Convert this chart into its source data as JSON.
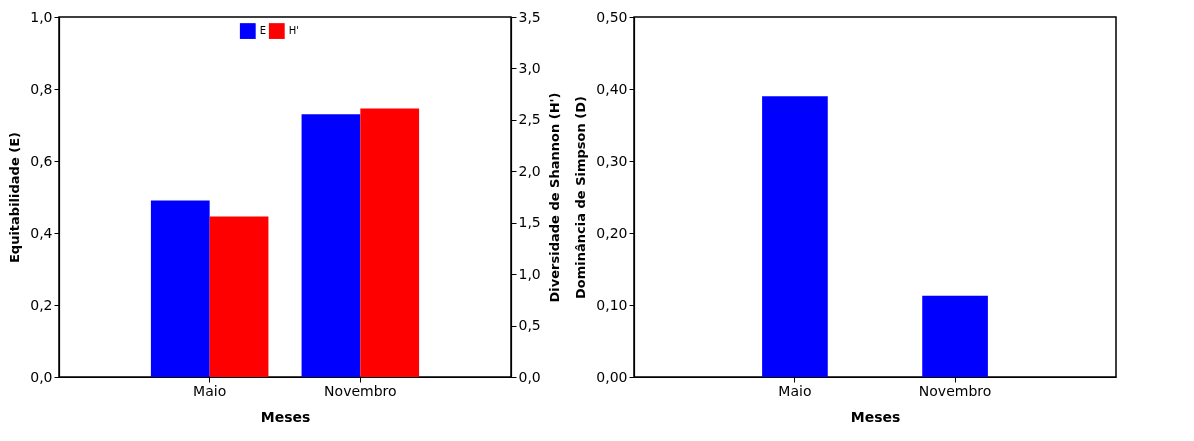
{
  "chart_data": [
    {
      "type": "bar",
      "categories": [
        "Maio",
        "Novembro"
      ],
      "xlabel": "Meses",
      "ylabel": "Equitabilidade (E)",
      "y2label": "Diversidade de Shannon (H')",
      "series": [
        {
          "name": "E",
          "color": "#0000ff",
          "values": [
            0.49,
            0.73
          ]
        },
        {
          "name": "H'",
          "color": "#ff0000",
          "values": [
            1.56,
            2.61
          ],
          "axis": "y2"
        }
      ],
      "ylim": [
        0,
        1
      ],
      "yticks": [
        {
          "value": 0,
          "label": "0,0"
        },
        {
          "value": 0.2,
          "label": "0,2"
        },
        {
          "value": 0.4,
          "label": "0,4"
        },
        {
          "value": 0.6,
          "label": "0,6"
        },
        {
          "value": 0.8,
          "label": "0,8"
        },
        {
          "value": 1,
          "label": "1,0"
        }
      ],
      "y2lim": [
        0,
        3.5
      ],
      "y2ticks": [
        {
          "value": 0,
          "label": "0,0"
        },
        {
          "value": 0.5,
          "label": "0,5"
        },
        {
          "value": 1,
          "label": "1,0"
        },
        {
          "value": 1.5,
          "label": "1,5"
        },
        {
          "value": 2,
          "label": "2,0"
        },
        {
          "value": 2.5,
          "label": "2,5"
        },
        {
          "value": 3,
          "label": "3,0"
        },
        {
          "value": 3.5,
          "label": "3,5"
        }
      ],
      "legend": "top",
      "grid": false
    },
    {
      "type": "bar",
      "categories": [
        "Maio",
        "Novembro"
      ],
      "xlabel": "Meses",
      "ylabel": "Dominância de Simpson (D)",
      "values": [
        0.39,
        0.113
      ],
      "color": "#0000ff",
      "ylim": [
        0,
        0.5
      ],
      "yticks": [
        {
          "value": 0,
          "label": "0,00"
        },
        {
          "value": 0.1,
          "label": "0,10"
        },
        {
          "value": 0.2,
          "label": "0,20"
        },
        {
          "value": 0.3,
          "label": "0,30"
        },
        {
          "value": 0.4,
          "label": "0,40"
        },
        {
          "value": 0.5,
          "label": "0,50"
        }
      ],
      "grid": false
    }
  ]
}
